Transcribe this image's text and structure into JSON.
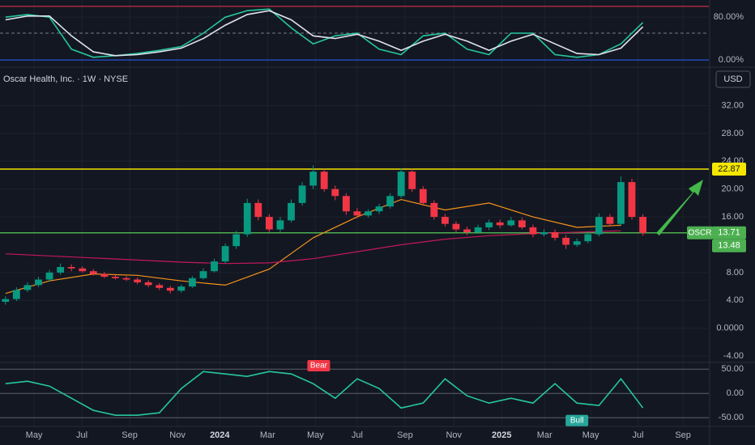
{
  "chart_data": [
    {
      "type": "line",
      "x": [
        0,
        4,
        8,
        12,
        16,
        20,
        24,
        28,
        32,
        36,
        40,
        44,
        48,
        52,
        56,
        60,
        64,
        68,
        72,
        76,
        80,
        84,
        88,
        92,
        96,
        100,
        104,
        108,
        112,
        116
      ],
      "series": [
        {
          "color": "#26c6a0",
          "values": [
            80,
            85,
            80,
            20,
            5,
            8,
            12,
            18,
            25,
            50,
            80,
            92,
            95,
            60,
            30,
            45,
            50,
            20,
            10,
            45,
            50,
            20,
            10,
            50,
            50,
            10,
            5,
            10,
            30,
            70
          ]
        },
        {
          "color": "#e0e3eb",
          "values": [
            75,
            82,
            82,
            45,
            15,
            8,
            10,
            15,
            22,
            40,
            65,
            85,
            92,
            75,
            45,
            40,
            48,
            35,
            18,
            35,
            48,
            35,
            18,
            35,
            48,
            30,
            12,
            10,
            22,
            62
          ]
        }
      ],
      "ylim": [
        -12,
        112
      ],
      "yticks": [
        {
          "value": 80,
          "label": "80.00%"
        },
        {
          "value": 0,
          "label": "0.00%"
        }
      ],
      "levels": [
        {
          "value": 100,
          "color": "#f23645"
        },
        {
          "value": 50,
          "color": "#787b86",
          "dashed": true
        },
        {
          "value": 0,
          "color": "#2962ff"
        }
      ]
    },
    {
      "type": "candlestick",
      "title": "Oscar Health, Inc. · 1W · NYSE",
      "currency": "USD",
      "symbol": "OSCR",
      "x": [
        0,
        2,
        4,
        6,
        8,
        10,
        12,
        14,
        16,
        18,
        20,
        22,
        24,
        26,
        28,
        30,
        32,
        34,
        36,
        38,
        40,
        42,
        44,
        46,
        48,
        50,
        52,
        54,
        56,
        58,
        60,
        62,
        64,
        66,
        68,
        70,
        72,
        74,
        76,
        78,
        80,
        82,
        84,
        86,
        88,
        90,
        92,
        94,
        96,
        98,
        100,
        102,
        104,
        106,
        108,
        110,
        112,
        114,
        116
      ],
      "open": [
        3.8,
        4.2,
        5.5,
        6.2,
        7.0,
        8.0,
        8.8,
        8.6,
        8.2,
        7.8,
        7.4,
        7.2,
        7.0,
        6.6,
        6.2,
        5.8,
        5.4,
        6.0,
        7.2,
        8.2,
        9.6,
        11.8,
        13.5,
        18.0,
        16.0,
        14.2,
        15.5,
        18.0,
        20.5,
        22.5,
        20.0,
        19.0,
        16.8,
        16.2,
        16.8,
        17.5,
        19.0,
        22.5,
        20.0,
        18.0,
        16.0,
        15.0,
        14.2,
        13.8,
        14.5,
        15.2,
        14.8,
        15.5,
        14.5,
        13.5,
        13.8,
        13.0,
        12.0,
        12.5,
        13.5,
        16.0,
        15.0,
        21.0,
        16.0
      ],
      "high": [
        4.6,
        5.9,
        6.6,
        7.4,
        8.4,
        9.3,
        9.2,
        8.9,
        8.5,
        8.1,
        7.7,
        7.5,
        7.3,
        6.9,
        6.5,
        6.1,
        6.3,
        7.5,
        8.6,
        10.0,
        12.2,
        14.0,
        18.6,
        18.5,
        16.4,
        16.0,
        18.5,
        21.0,
        23.4,
        22.9,
        20.5,
        19.4,
        17.3,
        17.1,
        17.9,
        19.4,
        23.0,
        22.9,
        20.4,
        18.4,
        16.4,
        15.4,
        14.6,
        14.9,
        15.6,
        15.6,
        16.0,
        15.9,
        14.9,
        14.2,
        14.2,
        13.4,
        12.9,
        13.9,
        16.5,
        16.4,
        21.8,
        21.5,
        16.4
      ],
      "low": [
        3.4,
        3.9,
        5.2,
        5.9,
        6.7,
        7.7,
        8.2,
        8.0,
        7.6,
        7.2,
        7.0,
        6.8,
        6.3,
        5.9,
        5.5,
        5.0,
        5.1,
        5.8,
        7.0,
        8.0,
        9.3,
        11.4,
        13.1,
        15.5,
        13.8,
        13.8,
        15.2,
        17.6,
        20.0,
        19.6,
        18.4,
        16.3,
        15.8,
        15.9,
        16.4,
        17.2,
        18.7,
        19.6,
        17.6,
        15.6,
        14.6,
        13.8,
        13.4,
        13.6,
        14.1,
        14.4,
        14.6,
        14.2,
        13.1,
        13.2,
        12.6,
        11.4,
        11.7,
        12.2,
        13.2,
        14.6,
        14.7,
        15.6,
        13.3
      ],
      "close": [
        4.2,
        5.5,
        6.2,
        7.0,
        8.0,
        8.8,
        8.6,
        8.2,
        7.8,
        7.4,
        7.2,
        7.0,
        6.6,
        6.2,
        5.8,
        5.4,
        6.0,
        7.2,
        8.2,
        9.6,
        11.8,
        13.5,
        18.0,
        16.0,
        14.2,
        15.5,
        18.0,
        20.5,
        22.5,
        20.0,
        19.0,
        16.8,
        16.2,
        16.8,
        17.5,
        19.0,
        22.5,
        20.0,
        18.0,
        16.0,
        15.0,
        14.2,
        13.8,
        14.5,
        15.2,
        14.8,
        15.5,
        14.5,
        13.5,
        13.8,
        13.0,
        12.0,
        12.5,
        13.5,
        16.0,
        15.0,
        21.0,
        16.0,
        13.71
      ],
      "up_color": "#089981",
      "down_color": "#f23645",
      "line_x": [
        0,
        8,
        16,
        24,
        32,
        40,
        48,
        56,
        64,
        72,
        80,
        88,
        96,
        104,
        112
      ],
      "lines": [
        {
          "color": "#f7931a",
          "values": [
            5,
            6.8,
            7.8,
            7.6,
            6.8,
            6.2,
            8.5,
            13,
            16,
            18.5,
            17,
            18,
            16,
            14.5,
            14.8
          ]
        },
        {
          "color": "#c2185b",
          "values": [
            10.7,
            10.4,
            10.1,
            9.8,
            9.5,
            9.3,
            9.4,
            10,
            11,
            12,
            12.8,
            13.3,
            13.6,
            13.8,
            14
          ]
        }
      ],
      "xlim": [
        -1,
        128
      ],
      "xticks": [
        {
          "value": 5.2,
          "label": "May"
        },
        {
          "value": 13.9,
          "label": "Jul"
        },
        {
          "value": 22.6,
          "label": "Sep"
        },
        {
          "value": 31.3,
          "label": "Nov"
        },
        {
          "value": 39,
          "label": "2024"
        },
        {
          "value": 47.7,
          "label": "Mar"
        },
        {
          "value": 56.4,
          "label": "May"
        },
        {
          "value": 64,
          "label": "Jul"
        },
        {
          "value": 72.7,
          "label": "Sep"
        },
        {
          "value": 81.6,
          "label": "Nov"
        },
        {
          "value": 90.3,
          "label": "2025"
        },
        {
          "value": 98.1,
          "label": "Mar"
        },
        {
          "value": 106.5,
          "label": "May"
        },
        {
          "value": 115.1,
          "label": "Jul"
        },
        {
          "value": 123.3,
          "label": "Sep"
        }
      ],
      "ylim": [
        -4.8,
        37.4
      ],
      "yticks": [
        {
          "value": 32,
          "label": "32.00"
        },
        {
          "value": 28,
          "label": "28.00"
        },
        {
          "value": 24,
          "label": "24.00"
        },
        {
          "value": 20,
          "label": "20.00"
        },
        {
          "value": 16,
          "label": "16.00"
        },
        {
          "value": 8,
          "label": "8.00"
        },
        {
          "value": 4,
          "label": "4.00"
        },
        {
          "value": 0,
          "label": "0.0000"
        },
        {
          "value": -4,
          "label": "-4.00"
        }
      ],
      "levels": [
        {
          "value": 22.87,
          "color": "#f5e600"
        },
        {
          "value": 13.71,
          "color": "#4caf50"
        }
      ],
      "marker": 13.48
    },
    {
      "type": "line",
      "x": [
        0,
        4,
        8,
        12,
        16,
        20,
        24,
        28,
        32,
        36,
        40,
        44,
        48,
        52,
        56,
        60,
        64,
        68,
        72,
        76,
        80,
        84,
        88,
        92,
        96,
        100,
        104,
        108,
        112,
        116
      ],
      "series": [
        {
          "color": "#26c6a0",
          "values": [
            20,
            25,
            15,
            -10,
            -35,
            -45,
            -45,
            -40,
            10,
            45,
            40,
            35,
            45,
            40,
            20,
            -10,
            30,
            10,
            -30,
            -20,
            30,
            -5,
            -20,
            -10,
            -20,
            20,
            -20,
            -25,
            30,
            -30
          ]
        }
      ],
      "ylim": [
        -68,
        62
      ],
      "yticks": [
        {
          "value": 50,
          "label": "50.00"
        },
        {
          "value": 0,
          "label": "0.00"
        },
        {
          "value": -50,
          "label": "-50.00"
        }
      ],
      "annotations": [
        {
          "text": "Bear",
          "x": 57,
          "y": 57,
          "color": "#f23645"
        },
        {
          "text": "Bull",
          "x": 104,
          "y": -56,
          "color": "#26a69a"
        }
      ]
    }
  ]
}
